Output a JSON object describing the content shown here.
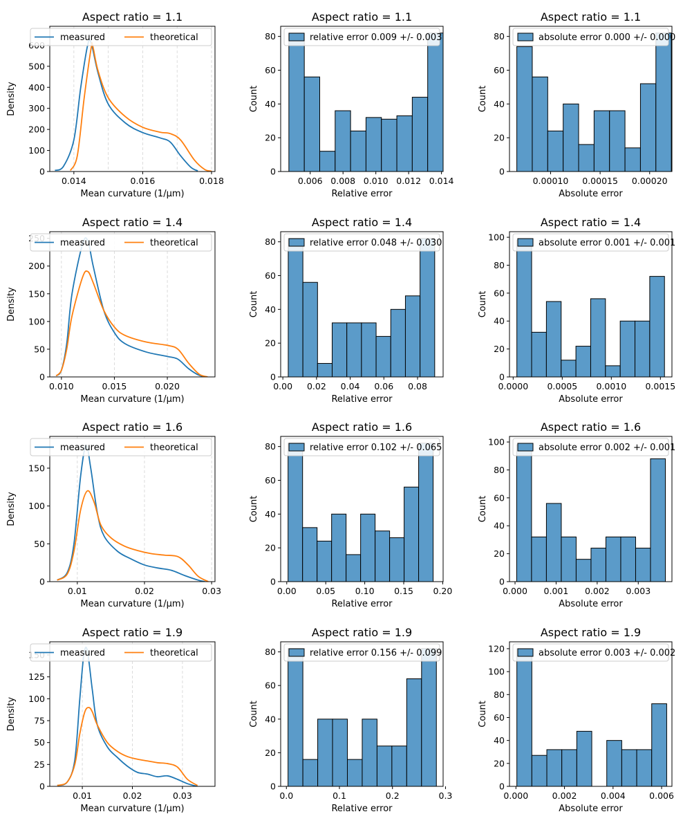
{
  "colors": {
    "measured": "#1f77b4",
    "theoretical": "#ff7f0e",
    "hist_fill": "#5b9bc9",
    "hist_edge": "#000000",
    "grid": "#d3d3d3"
  },
  "chart_data": [
    {
      "type": "line",
      "title": "Aspect ratio = 1.1",
      "xlabel": "Mean curvature (1/µm)",
      "ylabel": "Density",
      "xlim": [
        0.0133,
        0.0181
      ],
      "ylim": [
        0,
        690
      ],
      "xticks": [
        0.014,
        0.016,
        0.018
      ],
      "xtick_labels": [
        "0.014",
        "0.016",
        "0.018"
      ],
      "yticks": [
        0,
        100,
        200,
        300,
        400,
        500,
        600
      ],
      "ytick_labels": [
        "0",
        "100",
        "200",
        "300",
        "400",
        "500",
        "600"
      ],
      "grid_x": [
        0.014,
        0.015,
        0.016,
        0.017,
        0.018
      ],
      "legend": "top",
      "legend_cols": 2,
      "series": [
        {
          "name": "measured",
          "color_key": "measured",
          "x": [
            0.01345,
            0.0137,
            0.014,
            0.0142,
            0.0144,
            0.0145,
            0.0147,
            0.015,
            0.0155,
            0.016,
            0.0165,
            0.0168,
            0.0171,
            0.0174,
            0.0176
          ],
          "y": [
            5,
            25,
            150,
            400,
            600,
            612,
            470,
            320,
            230,
            185,
            160,
            140,
            75,
            20,
            3
          ]
        },
        {
          "name": "theoretical",
          "color_key": "theoretical",
          "x": [
            0.0139,
            0.0141,
            0.0143,
            0.0145,
            0.01455,
            0.0147,
            0.015,
            0.0155,
            0.016,
            0.0165,
            0.0168,
            0.0171,
            0.0175,
            0.0178,
            0.018
          ],
          "y": [
            5,
            75,
            350,
            585,
            595,
            480,
            350,
            260,
            210,
            187,
            180,
            150,
            55,
            10,
            2
          ]
        }
      ]
    },
    {
      "type": "bar",
      "title": "Aspect ratio = 1.1",
      "xlabel": "Relative error",
      "ylabel": "Count",
      "xlim": [
        0.0042,
        0.0141
      ],
      "ylim": [
        0,
        86
      ],
      "xticks": [
        0.006,
        0.008,
        0.01,
        0.012,
        0.014
      ],
      "xtick_labels": [
        "0.006",
        "0.008",
        "0.010",
        "0.012",
        "0.014"
      ],
      "yticks": [
        0,
        20,
        40,
        60,
        80
      ],
      "ytick_labels": [
        "0",
        "20",
        "40",
        "60",
        "80"
      ],
      "bin_start": 0.0047,
      "bin_width": 0.00094,
      "counts": [
        82,
        56,
        12,
        36,
        24,
        32,
        31,
        33,
        44,
        82
      ],
      "legend_label": "relative error 0.009 +/- 0.003",
      "legend": "top-left"
    },
    {
      "type": "bar",
      "title": "Aspect ratio = 1.1",
      "xlabel": "Absolute error",
      "ylabel": "Count",
      "xlim": [
        5.85e-05,
        0.0002225
      ],
      "ylim": [
        0,
        86
      ],
      "xticks": [
        0.0001,
        0.00015,
        0.0002
      ],
      "xtick_labels": [
        "0.00010",
        "0.00015",
        "0.00020"
      ],
      "yticks": [
        0,
        20,
        40,
        60,
        80
      ],
      "ytick_labels": [
        "0",
        "20",
        "40",
        "60",
        "80"
      ],
      "bin_start": 6.59e-05,
      "bin_width": 1.56e-05,
      "counts": [
        74,
        56,
        24,
        40,
        16,
        36,
        36,
        14,
        52,
        82
      ],
      "legend_label": "absolute error 0.000 +/- 0.000",
      "legend": "top-left"
    },
    {
      "type": "line",
      "title": "Aspect ratio = 1.4",
      "xlabel": "Mean curvature (1/µm)",
      "ylabel": "Density",
      "xlim": [
        0.0089,
        0.0245
      ],
      "ylim": [
        0,
        262
      ],
      "xticks": [
        0.01,
        0.015,
        0.02
      ],
      "xtick_labels": [
        "0.010",
        "0.015",
        "0.020"
      ],
      "yticks": [
        0,
        50,
        100,
        150,
        200,
        250
      ],
      "ytick_labels": [
        "0",
        "50",
        "100",
        "150",
        "200",
        "250"
      ],
      "grid_x": [
        0.01,
        0.015,
        0.02
      ],
      "legend": "top",
      "legend_cols": 2,
      "series": [
        {
          "name": "measured",
          "color_key": "measured",
          "x": [
            0.0095,
            0.01,
            0.0105,
            0.011,
            0.012,
            0.0125,
            0.013,
            0.014,
            0.015,
            0.016,
            0.018,
            0.02,
            0.021,
            0.022,
            0.023,
            0.0238
          ],
          "y": [
            2,
            12,
            60,
            150,
            240,
            245,
            200,
            120,
            80,
            60,
            45,
            37,
            32,
            15,
            3,
            0
          ]
        },
        {
          "name": "theoretical",
          "color_key": "theoretical",
          "x": [
            0.0095,
            0.01,
            0.0105,
            0.011,
            0.012,
            0.0125,
            0.013,
            0.014,
            0.015,
            0.016,
            0.018,
            0.02,
            0.021,
            0.022,
            0.023,
            0.0238
          ],
          "y": [
            2,
            12,
            50,
            110,
            180,
            190,
            170,
            120,
            90,
            75,
            63,
            57,
            50,
            25,
            5,
            0
          ]
        }
      ]
    },
    {
      "type": "bar",
      "title": "Aspect ratio = 1.4",
      "xlabel": "Relative error",
      "ylabel": "Count",
      "xlim": [
        -0.0013,
        0.0952
      ],
      "ylim": [
        0,
        86
      ],
      "xticks": [
        0,
        0.02,
        0.04,
        0.06,
        0.08
      ],
      "xtick_labels": [
        "0.00",
        "0.02",
        "0.04",
        "0.06",
        "0.08"
      ],
      "yticks": [
        0,
        20,
        40,
        60,
        80
      ],
      "ytick_labels": [
        "0",
        "20",
        "40",
        "60",
        "80"
      ],
      "bin_start": 0.0032,
      "bin_width": 0.0087,
      "counts": [
        82,
        56,
        8,
        32,
        32,
        32,
        24,
        40,
        48,
        82
      ],
      "legend_label": "relative error 0.048 +/- 0.030",
      "legend": "top-left"
    },
    {
      "type": "bar",
      "title": "Aspect ratio = 1.4",
      "xlabel": "Absolute error",
      "ylabel": "Count",
      "xlim": [
        -3.75e-05,
        0.0016175
      ],
      "ylim": [
        0,
        104
      ],
      "xticks": [
        0,
        0.0005,
        0.001,
        0.0015
      ],
      "xtick_labels": [
        "0.0000",
        "0.0005",
        "0.0010",
        "0.0015"
      ],
      "yticks": [
        0,
        20,
        40,
        60,
        80,
        100
      ],
      "ytick_labels": [
        "0",
        "20",
        "40",
        "60",
        "80",
        "100"
      ],
      "bin_start": 3.77e-05,
      "bin_width": 0.0001504,
      "counts": [
        98,
        32,
        54,
        12,
        22,
        56,
        8,
        40,
        40,
        72
      ],
      "legend_label": "absolute error 0.001 +/- 0.001",
      "legend": "top-left"
    },
    {
      "type": "line",
      "title": "Aspect ratio = 1.6",
      "xlabel": "Mean curvature (1/µm)",
      "ylabel": "Density",
      "xlim": [
        0.0059,
        0.0305
      ],
      "ylim": [
        0,
        192
      ],
      "xticks": [
        0.01,
        0.02,
        0.03
      ],
      "xtick_labels": [
        "0.01",
        "0.02",
        "0.03"
      ],
      "yticks": [
        0,
        50,
        100,
        150
      ],
      "ytick_labels": [
        "0",
        "50",
        "100",
        "150"
      ],
      "grid_x": [
        0.01,
        0.02,
        0.03
      ],
      "legend": "top",
      "legend_cols": 2,
      "series": [
        {
          "name": "measured",
          "color_key": "measured",
          "x": [
            0.007,
            0.0085,
            0.0095,
            0.0105,
            0.0113,
            0.012,
            0.013,
            0.014,
            0.016,
            0.018,
            0.02,
            0.022,
            0.024,
            0.026,
            0.028,
            0.029
          ],
          "y": [
            2,
            12,
            50,
            140,
            180,
            150,
            90,
            60,
            40,
            30,
            22,
            18,
            15,
            8,
            2,
            0
          ]
        },
        {
          "name": "theoretical",
          "color_key": "theoretical",
          "x": [
            0.007,
            0.0085,
            0.0095,
            0.0105,
            0.0115,
            0.0125,
            0.0135,
            0.015,
            0.017,
            0.019,
            0.021,
            0.023,
            0.025,
            0.0265,
            0.028,
            0.0295
          ],
          "y": [
            2,
            10,
            40,
            95,
            120,
            105,
            75,
            58,
            47,
            41,
            37,
            35,
            33,
            22,
            7,
            0
          ]
        }
      ]
    },
    {
      "type": "bar",
      "title": "Aspect ratio = 1.6",
      "xlabel": "Relative error",
      "ylabel": "Count",
      "xlim": [
        -0.0078,
        0.2005
      ],
      "ylim": [
        0,
        86
      ],
      "xticks": [
        0,
        0.05,
        0.1,
        0.15,
        0.2
      ],
      "xtick_labels": [
        "0.00",
        "0.05",
        "0.10",
        "0.15",
        "0.20"
      ],
      "yticks": [
        0,
        20,
        40,
        60,
        80
      ],
      "ytick_labels": [
        "0",
        "20",
        "40",
        "60",
        "80"
      ],
      "bin_start": 0.0017,
      "bin_width": 0.0186,
      "counts": [
        82,
        32,
        24,
        40,
        16,
        40,
        30,
        26,
        56,
        82
      ],
      "legend_label": "relative error 0.102 +/- 0.065",
      "legend": "top-left"
    },
    {
      "type": "bar",
      "title": "Aspect ratio = 1.6",
      "xlabel": "Absolute error",
      "ylabel": "Count",
      "xlim": [
        -0.000135,
        0.00382
      ],
      "ylim": [
        0,
        104
      ],
      "xticks": [
        0,
        0.001,
        0.002,
        0.003
      ],
      "xtick_labels": [
        "0.000",
        "0.001",
        "0.002",
        "0.003"
      ],
      "yticks": [
        0,
        20,
        40,
        60,
        80,
        100
      ],
      "ytick_labels": [
        "0",
        "20",
        "40",
        "60",
        "80",
        "100"
      ],
      "bin_start": 4e-05,
      "bin_width": 0.000362,
      "counts": [
        98,
        32,
        56,
        32,
        16,
        24,
        32,
        32,
        24,
        88
      ],
      "legend_label": "absolute error 0.002 +/- 0.001",
      "legend": "top-left"
    },
    {
      "type": "line",
      "title": "Aspect ratio = 1.9",
      "xlabel": "Mean curvature (1/µm)",
      "ylabel": "Density",
      "xlim": [
        0.0035,
        0.0365
      ],
      "ylim": [
        0,
        165
      ],
      "xticks": [
        0.01,
        0.02,
        0.03
      ],
      "xtick_labels": [
        "0.01",
        "0.02",
        "0.03"
      ],
      "yticks": [
        0,
        25,
        50,
        75,
        100,
        125,
        150
      ],
      "ytick_labels": [
        "0",
        "25",
        "50",
        "75",
        "100",
        "125",
        "150"
      ],
      "grid_x": [
        0.01,
        0.02,
        0.03
      ],
      "legend": "top",
      "legend_cols": 2,
      "series": [
        {
          "name": "measured",
          "color_key": "measured",
          "x": [
            0.005,
            0.007,
            0.0085,
            0.0095,
            0.0103,
            0.011,
            0.012,
            0.013,
            0.015,
            0.017,
            0.019,
            0.021,
            0.023,
            0.025,
            0.027,
            0.029,
            0.031,
            0.033
          ],
          "y": [
            1,
            5,
            30,
            100,
            150,
            155,
            110,
            70,
            45,
            33,
            23,
            16,
            14,
            11,
            12,
            8,
            3,
            0
          ]
        },
        {
          "name": "theoretical",
          "color_key": "theoretical",
          "x": [
            0.005,
            0.007,
            0.0085,
            0.0095,
            0.0105,
            0.0113,
            0.012,
            0.013,
            0.015,
            0.017,
            0.019,
            0.021,
            0.023,
            0.025,
            0.027,
            0.029,
            0.031,
            0.033
          ],
          "y": [
            1,
            5,
            25,
            60,
            85,
            90,
            85,
            70,
            50,
            40,
            34,
            31,
            29,
            27,
            26,
            22,
            8,
            1
          ]
        }
      ]
    },
    {
      "type": "bar",
      "title": "Aspect ratio = 1.9",
      "xlabel": "Relative error",
      "ylabel": "Count",
      "xlim": [
        -0.0108,
        0.2955
      ],
      "ylim": [
        0,
        86
      ],
      "xticks": [
        0,
        0.1,
        0.2,
        0.3
      ],
      "xtick_labels": [
        "0.0",
        "0.1",
        "0.2",
        "0.3"
      ],
      "yticks": [
        0,
        20,
        40,
        60,
        80
      ],
      "ytick_labels": [
        "0",
        "20",
        "40",
        "60",
        "80"
      ],
      "bin_start": 0.0031,
      "bin_width": 0.02797,
      "counts": [
        82,
        16,
        40,
        40,
        16,
        40,
        24,
        24,
        64,
        82
      ],
      "legend_label": "relative error 0.156 +/- 0.099",
      "legend": "top-left"
    },
    {
      "type": "bar",
      "title": "Aspect ratio = 1.9",
      "xlabel": "Absolute error",
      "ylabel": "Count",
      "xlim": [
        -0.000265,
        0.006425
      ],
      "ylim": [
        0,
        126
      ],
      "xticks": [
        0,
        0.002,
        0.004,
        0.006
      ],
      "xtick_labels": [
        "0.000",
        "0.002",
        "0.004",
        "0.006"
      ],
      "yticks": [
        0,
        20,
        40,
        60,
        80,
        100,
        120
      ],
      "ytick_labels": [
        "0",
        "20",
        "40",
        "60",
        "80",
        "100",
        "120"
      ],
      "bin_start": 3.9e-05,
      "bin_width": 0.000617,
      "counts": [
        120,
        27,
        32,
        32,
        48,
        0,
        40,
        32,
        32,
        72
      ],
      "legend_label": "absolute error 0.003 +/- 0.002",
      "legend": "top-left"
    }
  ]
}
